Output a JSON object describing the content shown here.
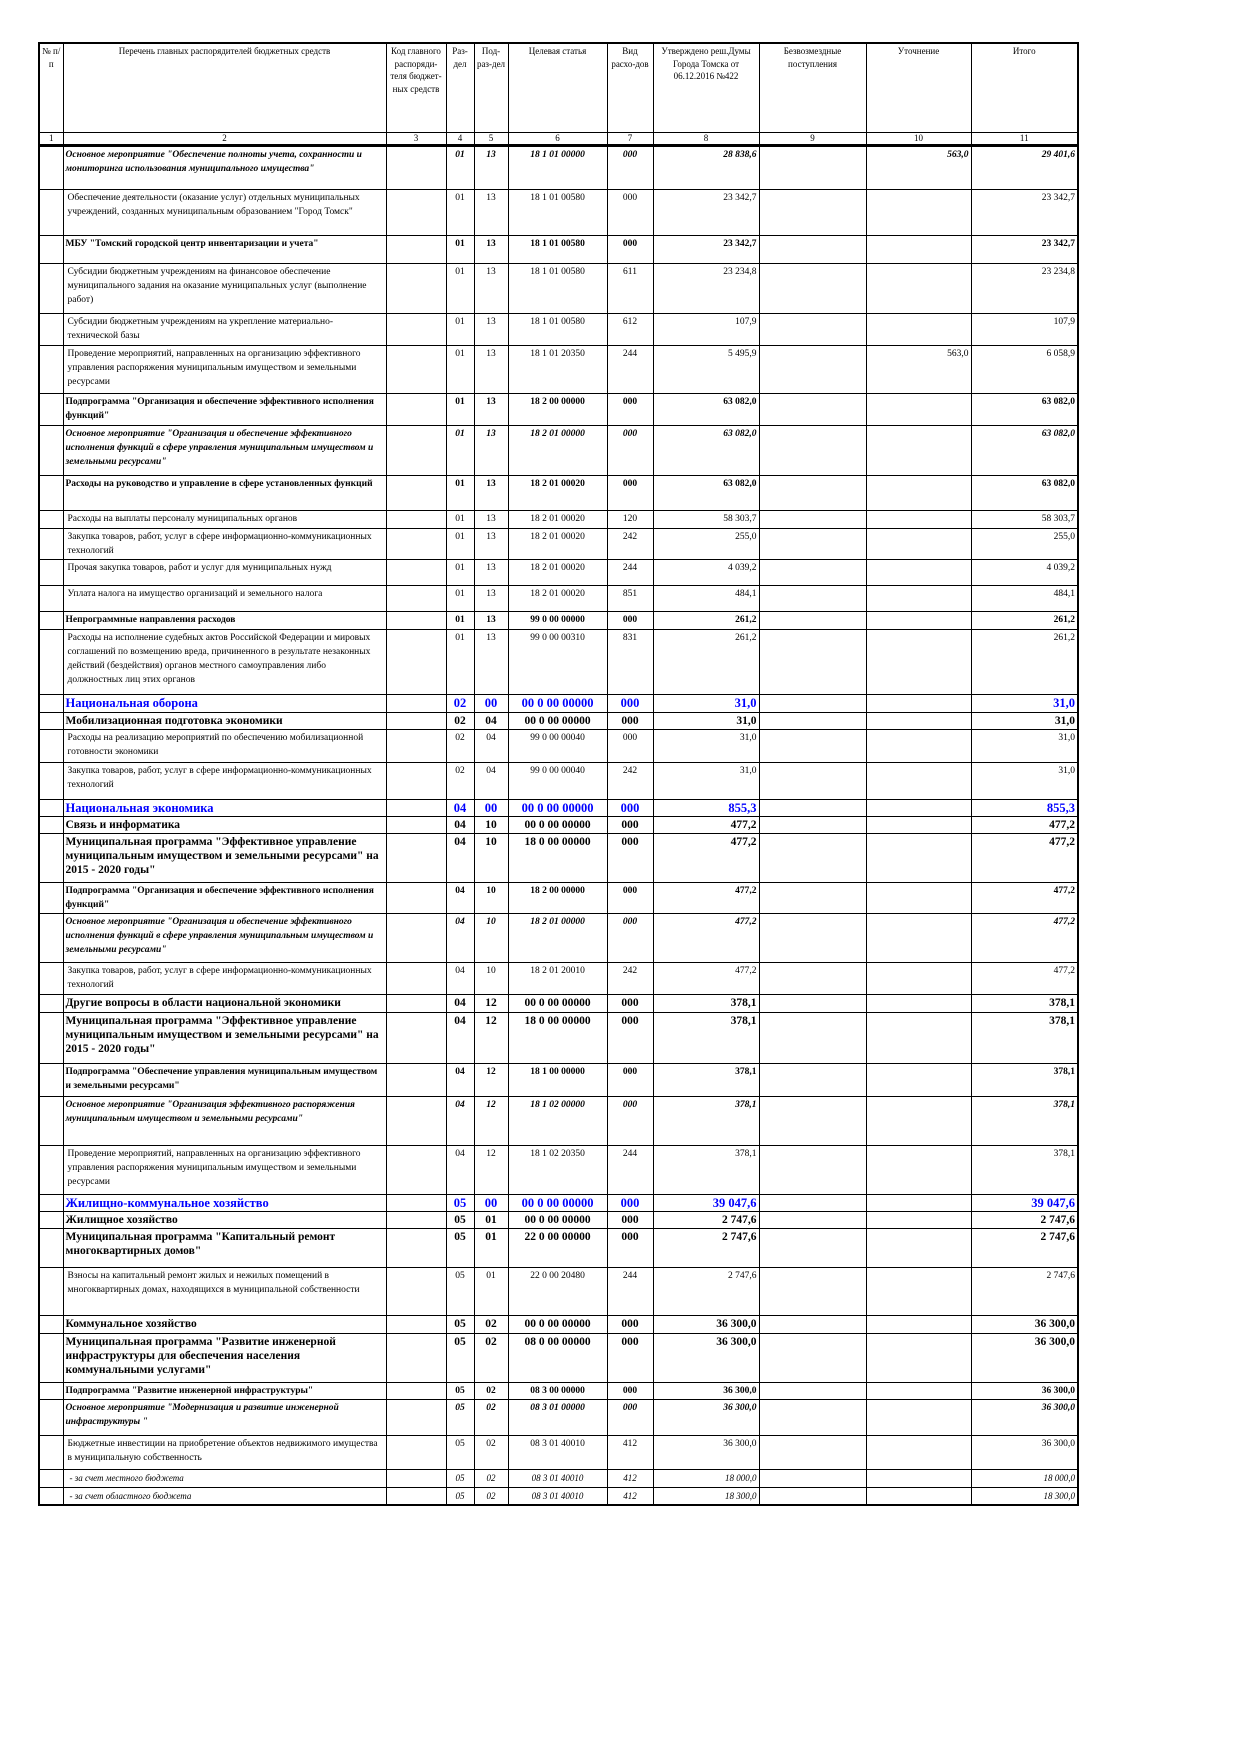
{
  "headers": [
    "№ п/п",
    "Перечень главных распорядителей бюджетных средств",
    "Код главного распоряди-теля бюджет-ных средств",
    "Раз-дел",
    "Под-раз-дел",
    "Целевая статья",
    "Вид расхо-дов",
    "Утверждено реш.Думы Города Томска от 06.12.2016 №422",
    "Безвозмездные поступления",
    "Уточнение",
    "Итого"
  ],
  "column_numbers": [
    "1",
    "2",
    "3",
    "4",
    "5",
    "6",
    "7",
    "8",
    "9",
    "10",
    "11"
  ],
  "rows": [
    {
      "type": "bi",
      "name": "Основное мероприятие \"Обеспечение полноты учета, сохранности и мониторинга использования муниципального имущества\"",
      "code": "",
      "razdel": "01",
      "podrazdel": "13",
      "target": "18 1 01 00000",
      "vid": "000",
      "approved": "28 838,6",
      "free": "",
      "clarification": "563,0",
      "total": "29 401,6"
    },
    {
      "type": "n",
      "name": "Обеспечение деятельности (оказание услуг) отдельных муниципальных учреждений, созданных муниципальным образованием \"Город Томск\"",
      "code": "",
      "razdel": "01",
      "podrazdel": "13",
      "target": "18 1 01 00580",
      "vid": "000",
      "approved": "23 342,7",
      "free": "",
      "clarification": "",
      "total": "23 342,7"
    },
    {
      "type": "b",
      "name": "МБУ \"Томский городской центр инвентаризации и учета\"",
      "code": "",
      "razdel": "01",
      "podrazdel": "13",
      "target": "18 1 01 00580",
      "vid": "000",
      "approved": "23 342,7",
      "free": "",
      "clarification": "",
      "total": "23 342,7"
    },
    {
      "type": "n",
      "name": "Субсидии бюджетным учреждениям на финансовое обеспечение муниципального задания на оказание муниципальных услуг (выполнение работ)",
      "code": "",
      "razdel": "01",
      "podrazdel": "13",
      "target": "18 1 01 00580",
      "vid": "611",
      "approved": "23 234,8",
      "free": "",
      "clarification": "",
      "total": "23 234,8"
    },
    {
      "type": "n",
      "name": "Субсидии бюджетным учреждениям на укрепление материально-технической базы",
      "code": "",
      "razdel": "01",
      "podrazdel": "13",
      "target": "18 1 01 00580",
      "vid": "612",
      "approved": "107,9",
      "free": "",
      "clarification": "",
      "total": "107,9"
    },
    {
      "type": "n",
      "name": "Проведение мероприятий, направленных на организацию эффективного управления распоряжения муниципальным имуществом и земельными ресурсами",
      "code": "",
      "razdel": "01",
      "podrazdel": "13",
      "target": "18 1 01 20350",
      "vid": "244",
      "approved": "5 495,9",
      "free": "",
      "clarification": "563,0",
      "total": "6 058,9"
    },
    {
      "type": "b",
      "name": "Подпрограмма \"Организация и обеспечение эффективного исполнения функций\"",
      "code": "",
      "razdel": "01",
      "podrazdel": "13",
      "target": "18 2 00 00000",
      "vid": "000",
      "approved": "63 082,0",
      "free": "",
      "clarification": "",
      "total": "63 082,0"
    },
    {
      "type": "bi",
      "name": "Основное мероприятие \"Организация и обеспечение эффективного исполнения функций в сфере управления муниципальным имуществом и земельными ресурсами\"",
      "code": "",
      "razdel": "01",
      "podrazdel": "13",
      "target": "18 2 01 00000",
      "vid": "000",
      "approved": "63 082,0",
      "free": "",
      "clarification": "",
      "total": "63 082,0"
    },
    {
      "type": "b",
      "name": "Расходы на руководство и управление в сфере установленных функций",
      "code": "",
      "razdel": "01",
      "podrazdel": "13",
      "target": "18 2 01 00020",
      "vid": "000",
      "approved": "63 082,0",
      "free": "",
      "clarification": "",
      "total": "63 082,0"
    },
    {
      "type": "n",
      "name": "Расходы на выплаты персоналу муниципальных органов",
      "code": "",
      "razdel": "01",
      "podrazdel": "13",
      "target": "18 2 01 00020",
      "vid": "120",
      "approved": "58 303,7",
      "free": "",
      "clarification": "",
      "total": "58 303,7"
    },
    {
      "type": "n",
      "name": "Закупка товаров, работ, услуг в сфере информационно-коммуникационных технологий",
      "code": "",
      "razdel": "01",
      "podrazdel": "13",
      "target": "18 2 01 00020",
      "vid": "242",
      "approved": "255,0",
      "free": "",
      "clarification": "",
      "total": "255,0"
    },
    {
      "type": "n",
      "name": "Прочая закупка товаров, работ и услуг для муниципальных нужд",
      "code": "",
      "razdel": "01",
      "podrazdel": "13",
      "target": "18 2 01 00020",
      "vid": "244",
      "approved": "4 039,2",
      "free": "",
      "clarification": "",
      "total": "4 039,2"
    },
    {
      "type": "n",
      "name": "Уплата налога на имущество организаций и земельного налога",
      "code": "",
      "razdel": "01",
      "podrazdel": "13",
      "target": "18 2 01 00020",
      "vid": "851",
      "approved": "484,1",
      "free": "",
      "clarification": "",
      "total": "484,1"
    },
    {
      "type": "b",
      "name": "Непрограммные направления расходов",
      "code": "",
      "razdel": "01",
      "podrazdel": "13",
      "target": "99 0 00 00000",
      "vid": "000",
      "approved": "261,2",
      "free": "",
      "clarification": "",
      "total": "261,2"
    },
    {
      "type": "n",
      "name": "Расходы на исполнение судебных актов Российской Федерации и мировых соглашений по возмещению вреда, причиненного в результате незаконных действий (бездействия) органов местного самоуправления либо должностных лиц этих органов",
      "code": "",
      "razdel": "01",
      "podrazdel": "13",
      "target": "99 0 00 00310",
      "vid": "831",
      "approved": "261,2",
      "free": "",
      "clarification": "",
      "total": "261,2"
    },
    {
      "type": "sec",
      "name": "Национальная оборона",
      "code": "",
      "razdel": "02",
      "podrazdel": "00",
      "target": "00 0 00 00000",
      "vid": "000",
      "approved": "31,0",
      "free": "",
      "clarification": "",
      "total": "31,0"
    },
    {
      "type": "bl",
      "name": "Мобилизационная подготовка экономики",
      "code": "",
      "razdel": "02",
      "podrazdel": "04",
      "target": "00 0 00 00000",
      "vid": "000",
      "approved": "31,0",
      "free": "",
      "clarification": "",
      "total": "31,0"
    },
    {
      "type": "n",
      "name": "Расходы на реализацию мероприятий по обеспечению мобилизационной готовности экономики",
      "code": "",
      "razdel": "02",
      "podrazdel": "04",
      "target": "99 0 00 00040",
      "vid": "000",
      "approved": "31,0",
      "free": "",
      "clarification": "",
      "total": "31,0"
    },
    {
      "type": "n",
      "name": "Закупка товаров, работ, услуг в сфере информационно-коммуникационных технологий",
      "code": "",
      "razdel": "02",
      "podrazdel": "04",
      "target": "99 0 00 00040",
      "vid": "242",
      "approved": "31,0",
      "free": "",
      "clarification": "",
      "total": "31,0"
    },
    {
      "type": "sec",
      "name": "Национальная экономика",
      "code": "",
      "razdel": "04",
      "podrazdel": "00",
      "target": "00 0 00 00000",
      "vid": "000",
      "approved": "855,3",
      "free": "",
      "clarification": "",
      "total": "855,3"
    },
    {
      "type": "bl",
      "name": "Связь и информатика",
      "code": "",
      "razdel": "04",
      "podrazdel": "10",
      "target": "00 0 00 00000",
      "vid": "000",
      "approved": "477,2",
      "free": "",
      "clarification": "",
      "total": "477,2"
    },
    {
      "type": "bl",
      "name": "Муниципальная программа \"Эффективное управление муниципальным имуществом и земельными ресурсами\" на 2015 - 2020 годы\"",
      "code": "",
      "razdel": "04",
      "podrazdel": "10",
      "target": "18 0 00 00000",
      "vid": "000",
      "approved": "477,2",
      "free": "",
      "clarification": "",
      "total": "477,2"
    },
    {
      "type": "b",
      "name": "Подпрограмма \"Организация и обеспечение эффективного исполнения функций\"",
      "code": "",
      "razdel": "04",
      "podrazdel": "10",
      "target": "18 2 00 00000",
      "vid": "000",
      "approved": "477,2",
      "free": "",
      "clarification": "",
      "total": "477,2"
    },
    {
      "type": "bi",
      "name": "Основное мероприятие \"Организация и обеспечение эффективного исполнения функций в сфере управления муниципальным имуществом и земельными ресурсами\"",
      "code": "",
      "razdel": "04",
      "podrazdel": "10",
      "target": "18 2 01 00000",
      "vid": "000",
      "approved": "477,2",
      "free": "",
      "clarification": "",
      "total": "477,2"
    },
    {
      "type": "n",
      "name": "Закупка товаров, работ, услуг в сфере информационно-коммуникационных технологий",
      "code": "",
      "razdel": "04",
      "podrazdel": "10",
      "target": "18 2 01 20010",
      "vid": "242",
      "approved": "477,2",
      "free": "",
      "clarification": "",
      "total": "477,2"
    },
    {
      "type": "bl",
      "name": "Другие вопросы в области национальной экономики",
      "code": "",
      "razdel": "04",
      "podrazdel": "12",
      "target": "00 0 00 00000",
      "vid": "000",
      "approved": "378,1",
      "free": "",
      "clarification": "",
      "total": "378,1"
    },
    {
      "type": "bl",
      "name": "Муниципальная программа \"Эффективное управление муниципальным имуществом и земельными ресурсами\" на 2015 - 2020 годы\"",
      "code": "",
      "razdel": "04",
      "podrazdel": "12",
      "target": "18 0 00 00000",
      "vid": "000",
      "approved": "378,1",
      "free": "",
      "clarification": "",
      "total": "378,1"
    },
    {
      "type": "b",
      "name": "Подпрограмма \"Обеспечение управления муниципальным имуществом и земельными ресурсами\"",
      "code": "",
      "razdel": "04",
      "podrazdel": "12",
      "target": "18 1 00 00000",
      "vid": "000",
      "approved": "378,1",
      "free": "",
      "clarification": "",
      "total": "378,1"
    },
    {
      "type": "bi",
      "name": "Основное мероприятие \"Организация эффективного распоряжения муниципальным имуществом и земельными ресурсами\"",
      "code": "",
      "razdel": "04",
      "podrazdel": "12",
      "target": "18 1 02 00000",
      "vid": "000",
      "approved": "378,1",
      "free": "",
      "clarification": "",
      "total": "378,1"
    },
    {
      "type": "n",
      "name": "Проведение мероприятий, направленных на организацию эффективного управления распоряжения муниципальным имуществом и земельными ресурсами",
      "code": "",
      "razdel": "04",
      "podrazdel": "12",
      "target": "18 1 02 20350",
      "vid": "244",
      "approved": "378,1",
      "free": "",
      "clarification": "",
      "total": "378,1"
    },
    {
      "type": "sec",
      "name": "Жилищно-коммунальное хозяйство",
      "code": "",
      "razdel": "05",
      "podrazdel": "00",
      "target": "00 0 00 00000",
      "vid": "000",
      "approved": "39 047,6",
      "free": "",
      "clarification": "",
      "total": "39 047,6"
    },
    {
      "type": "bl",
      "name": "Жилищное хозяйство",
      "code": "",
      "razdel": "05",
      "podrazdel": "01",
      "target": "00 0 00 00000",
      "vid": "000",
      "approved": "2 747,6",
      "free": "",
      "clarification": "",
      "total": "2 747,6"
    },
    {
      "type": "bl",
      "name": "Муниципальная программа \"Капитальный ремонт многоквартирных домов\"",
      "code": "",
      "razdel": "05",
      "podrazdel": "01",
      "target": "22 0 00 00000",
      "vid": "000",
      "approved": "2 747,6",
      "free": "",
      "clarification": "",
      "total": "2 747,6"
    },
    {
      "type": "n",
      "name": "Взносы на капитальный ремонт жилых и нежилых помещений в многоквартирных домах, находящихся в муниципальной собственности",
      "code": "",
      "razdel": "05",
      "podrazdel": "01",
      "target": "22 0 00 20480",
      "vid": "244",
      "approved": "2 747,6",
      "free": "",
      "clarification": "",
      "total": "2 747,6"
    },
    {
      "type": "bl",
      "name": "Коммунальное хозяйство",
      "code": "",
      "razdel": "05",
      "podrazdel": "02",
      "target": "00 0 00 00000",
      "vid": "000",
      "approved": "36 300,0",
      "free": "",
      "clarification": "",
      "total": "36 300,0"
    },
    {
      "type": "bl",
      "name": "Муниципальная программа \"Развитие инженерной инфраструктуры для обеспечения населения коммунальными услугами\"",
      "code": "",
      "razdel": "05",
      "podrazdel": "02",
      "target": "08 0 00 00000",
      "vid": "000",
      "approved": "36 300,0",
      "free": "",
      "clarification": "",
      "total": "36 300,0"
    },
    {
      "type": "b",
      "name": "Подпрограмма \"Развитие инженерной инфраструктуры\"",
      "code": "",
      "razdel": "05",
      "podrazdel": "02",
      "target": "08 3 00 00000",
      "vid": "000",
      "approved": "36 300,0",
      "free": "",
      "clarification": "",
      "total": "36 300,0"
    },
    {
      "type": "bi",
      "name": "Основное мероприятие \"Модернизация и развитие инженерной инфраструктуры \"",
      "code": "",
      "razdel": "05",
      "podrazdel": "02",
      "target": "08 3 01 00000",
      "vid": "000",
      "approved": "36 300,0",
      "free": "",
      "clarification": "",
      "total": "36 300,0"
    },
    {
      "type": "n",
      "name": "Бюджетные инвестиции на приобретение объектов недвижимого имущества в муниципальную собственность",
      "code": "",
      "razdel": "05",
      "podrazdel": "02",
      "target": "08 3 01 40010",
      "vid": "412",
      "approved": "36 300,0",
      "free": "",
      "clarification": "",
      "total": "36 300,0"
    },
    {
      "type": "i",
      "name": "- за счет местного бюджета",
      "code": "",
      "razdel": "05",
      "podrazdel": "02",
      "target": "08 3 01 40010",
      "vid": "412",
      "approved": "18 000,0",
      "free": "",
      "clarification": "",
      "total": "18 000,0"
    },
    {
      "type": "i",
      "name": "- за счет областного бюджета",
      "code": "",
      "razdel": "05",
      "podrazdel": "02",
      "target": "08 3 01 40010",
      "vid": "412",
      "approved": "18 300,0",
      "free": "",
      "clarification": "",
      "total": "18 300,0"
    }
  ]
}
